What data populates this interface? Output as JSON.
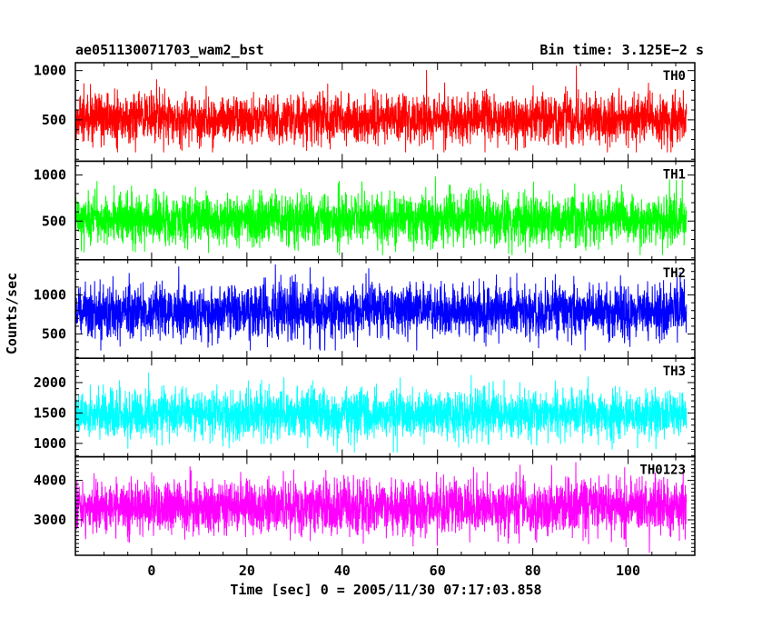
{
  "header": {
    "title": "ae051130071703_wam2_bst",
    "bin_time": "Bin time: 3.125E−2 s"
  },
  "chart_data": {
    "type": "line",
    "xlabel": "Time [sec] 0 = 2005/11/30 07:17:03.858",
    "ylabel": "Counts/sec",
    "xlim": [
      -16,
      114
    ],
    "x_data_range": [
      -16,
      112
    ],
    "x_ticks": [
      0,
      20,
      40,
      60,
      80,
      100
    ],
    "grid": false,
    "panels": [
      {
        "name": "TH0",
        "color": "#ff0000",
        "ylim": [
          80,
          1080
        ],
        "y_ticks": [
          500,
          1000
        ],
        "signal": {
          "mean": 510,
          "std": 125,
          "min": 170,
          "max": 1050
        }
      },
      {
        "name": "TH1",
        "color": "#00ff00",
        "ylim": [
          80,
          1150
        ],
        "y_ticks": [
          500,
          1000
        ],
        "signal": {
          "mean": 520,
          "std": 135,
          "min": 130,
          "max": 1120
        }
      },
      {
        "name": "TH2",
        "color": "#0000ff",
        "ylim": [
          190,
          1450
        ],
        "y_ticks": [
          500,
          1000
        ],
        "signal": {
          "mean": 800,
          "std": 170,
          "min": 290,
          "max": 1390
        }
      },
      {
        "name": "TH3",
        "color": "#00ffff",
        "ylim": [
          780,
          2400
        ],
        "y_ticks": [
          1000,
          1500,
          2000
        ],
        "signal": {
          "mean": 1480,
          "std": 200,
          "min": 850,
          "max": 2350
        }
      },
      {
        "name": "TH0123",
        "color": "#ff00ff",
        "ylim": [
          2100,
          4600
        ],
        "y_ticks": [
          3000,
          4000
        ],
        "signal": {
          "mean": 3320,
          "std": 330,
          "min": 2150,
          "max": 4520
        }
      }
    ]
  }
}
